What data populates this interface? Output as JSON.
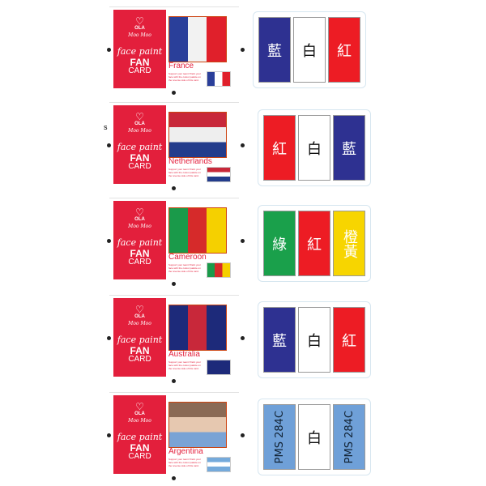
{
  "front": {
    "logo": "♡",
    "brand": "OLA",
    "sub": "Moo Moo",
    "face": "face paint",
    "fan": "FAN",
    "card": "CARD"
  },
  "note": "Support your team! Paint your face with the colour palette on the reverse side of this card.",
  "mark": "s",
  "cards": [
    {
      "country": "France",
      "photo": [
        "#2a3f9a",
        "#f2f2f2",
        "#e0202b"
      ],
      "flag": {
        "dir": "row",
        "colors": [
          "#2a3f9a",
          "#ffffff",
          "#e0202b"
        ]
      },
      "palette": [
        {
          "label": "藍",
          "color": "#2e3191"
        },
        {
          "label": "白",
          "color": "#ffffff"
        },
        {
          "label": "紅",
          "color": "#ed1c24"
        }
      ]
    },
    {
      "country": "Netherlands",
      "photo": [
        "#c8283a",
        "#eeeeee",
        "#233c8c"
      ],
      "flag": {
        "dir": "column",
        "colors": [
          "#c8283a",
          "#ffffff",
          "#233c8c"
        ]
      },
      "palette": [
        {
          "label": "紅",
          "color": "#ed1c24"
        },
        {
          "label": "白",
          "color": "#ffffff"
        },
        {
          "label": "藍",
          "color": "#2e3191"
        }
      ]
    },
    {
      "country": "Cameroon",
      "photo": [
        "#1a9a4a",
        "#d62a2a",
        "#f5d000"
      ],
      "flag": {
        "dir": "row",
        "colors": [
          "#1a9a4a",
          "#d62a2a",
          "#f5d000"
        ]
      },
      "palette": [
        {
          "label": "綠",
          "color": "#1aa04b"
        },
        {
          "label": "紅",
          "color": "#ed1c24"
        },
        {
          "label": "橙黃",
          "color": "#f7d500"
        }
      ]
    },
    {
      "country": "Australia",
      "photo": [
        "#1d2a7a",
        "#c8283a",
        "#1d2a7a"
      ],
      "flag": {
        "dir": "row",
        "colors": [
          "#1d2a7a",
          "#1d2a7a",
          "#1d2a7a"
        ]
      },
      "palette": [
        {
          "label": "藍",
          "color": "#2e3191"
        },
        {
          "label": "白",
          "color": "#ffffff"
        },
        {
          "label": "紅",
          "color": "#ed1c24"
        }
      ]
    },
    {
      "country": "Argentina",
      "photo": [
        "#8a6a55",
        "#e6c8b0",
        "#7aa3d5"
      ],
      "flag": {
        "dir": "column",
        "colors": [
          "#75aadb",
          "#ffffff",
          "#75aadb"
        ]
      },
      "palette": [
        {
          "label": "PMS 284C",
          "color": "#6fa0d8"
        },
        {
          "label": "白",
          "color": "#ffffff"
        },
        {
          "label": "PMS 284C",
          "color": "#6fa0d8"
        }
      ]
    }
  ]
}
